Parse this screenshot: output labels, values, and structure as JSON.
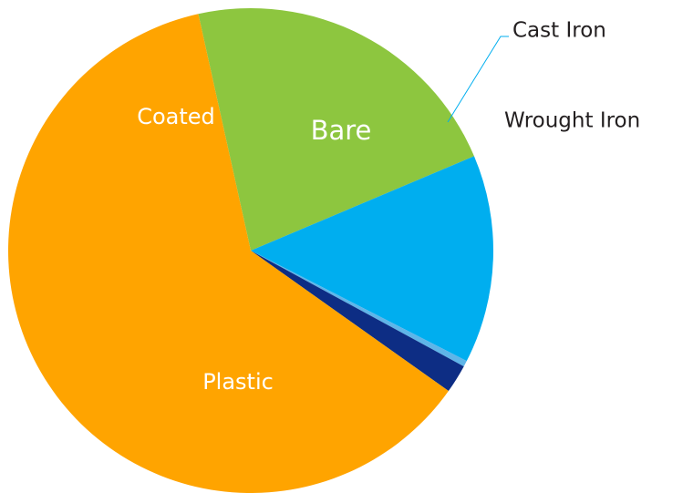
{
  "chart_data": {
    "type": "pie",
    "title": "",
    "slices": [
      {
        "label": "Coated",
        "value": 22.1,
        "color": "#8dc63f",
        "label_color": "#ffffff"
      },
      {
        "label": "Bare",
        "value": 13.9,
        "color": "#00aeef",
        "label_color": "#ffffff"
      },
      {
        "label": "Cast Iron",
        "value": 0.4,
        "color": "#5fb5e8",
        "label_color": "#231f20"
      },
      {
        "label": "Wrought Iron",
        "value": 1.9,
        "color": "#0d2d84",
        "label_color": "#231f20"
      },
      {
        "label": "Plastic",
        "value": 61.7,
        "color": "#ffa400",
        "label_color": "#ffffff"
      }
    ],
    "start_angle_deg": -102.5,
    "direction": "clockwise",
    "legend": "none",
    "leader_line_color": "#00aeef"
  }
}
